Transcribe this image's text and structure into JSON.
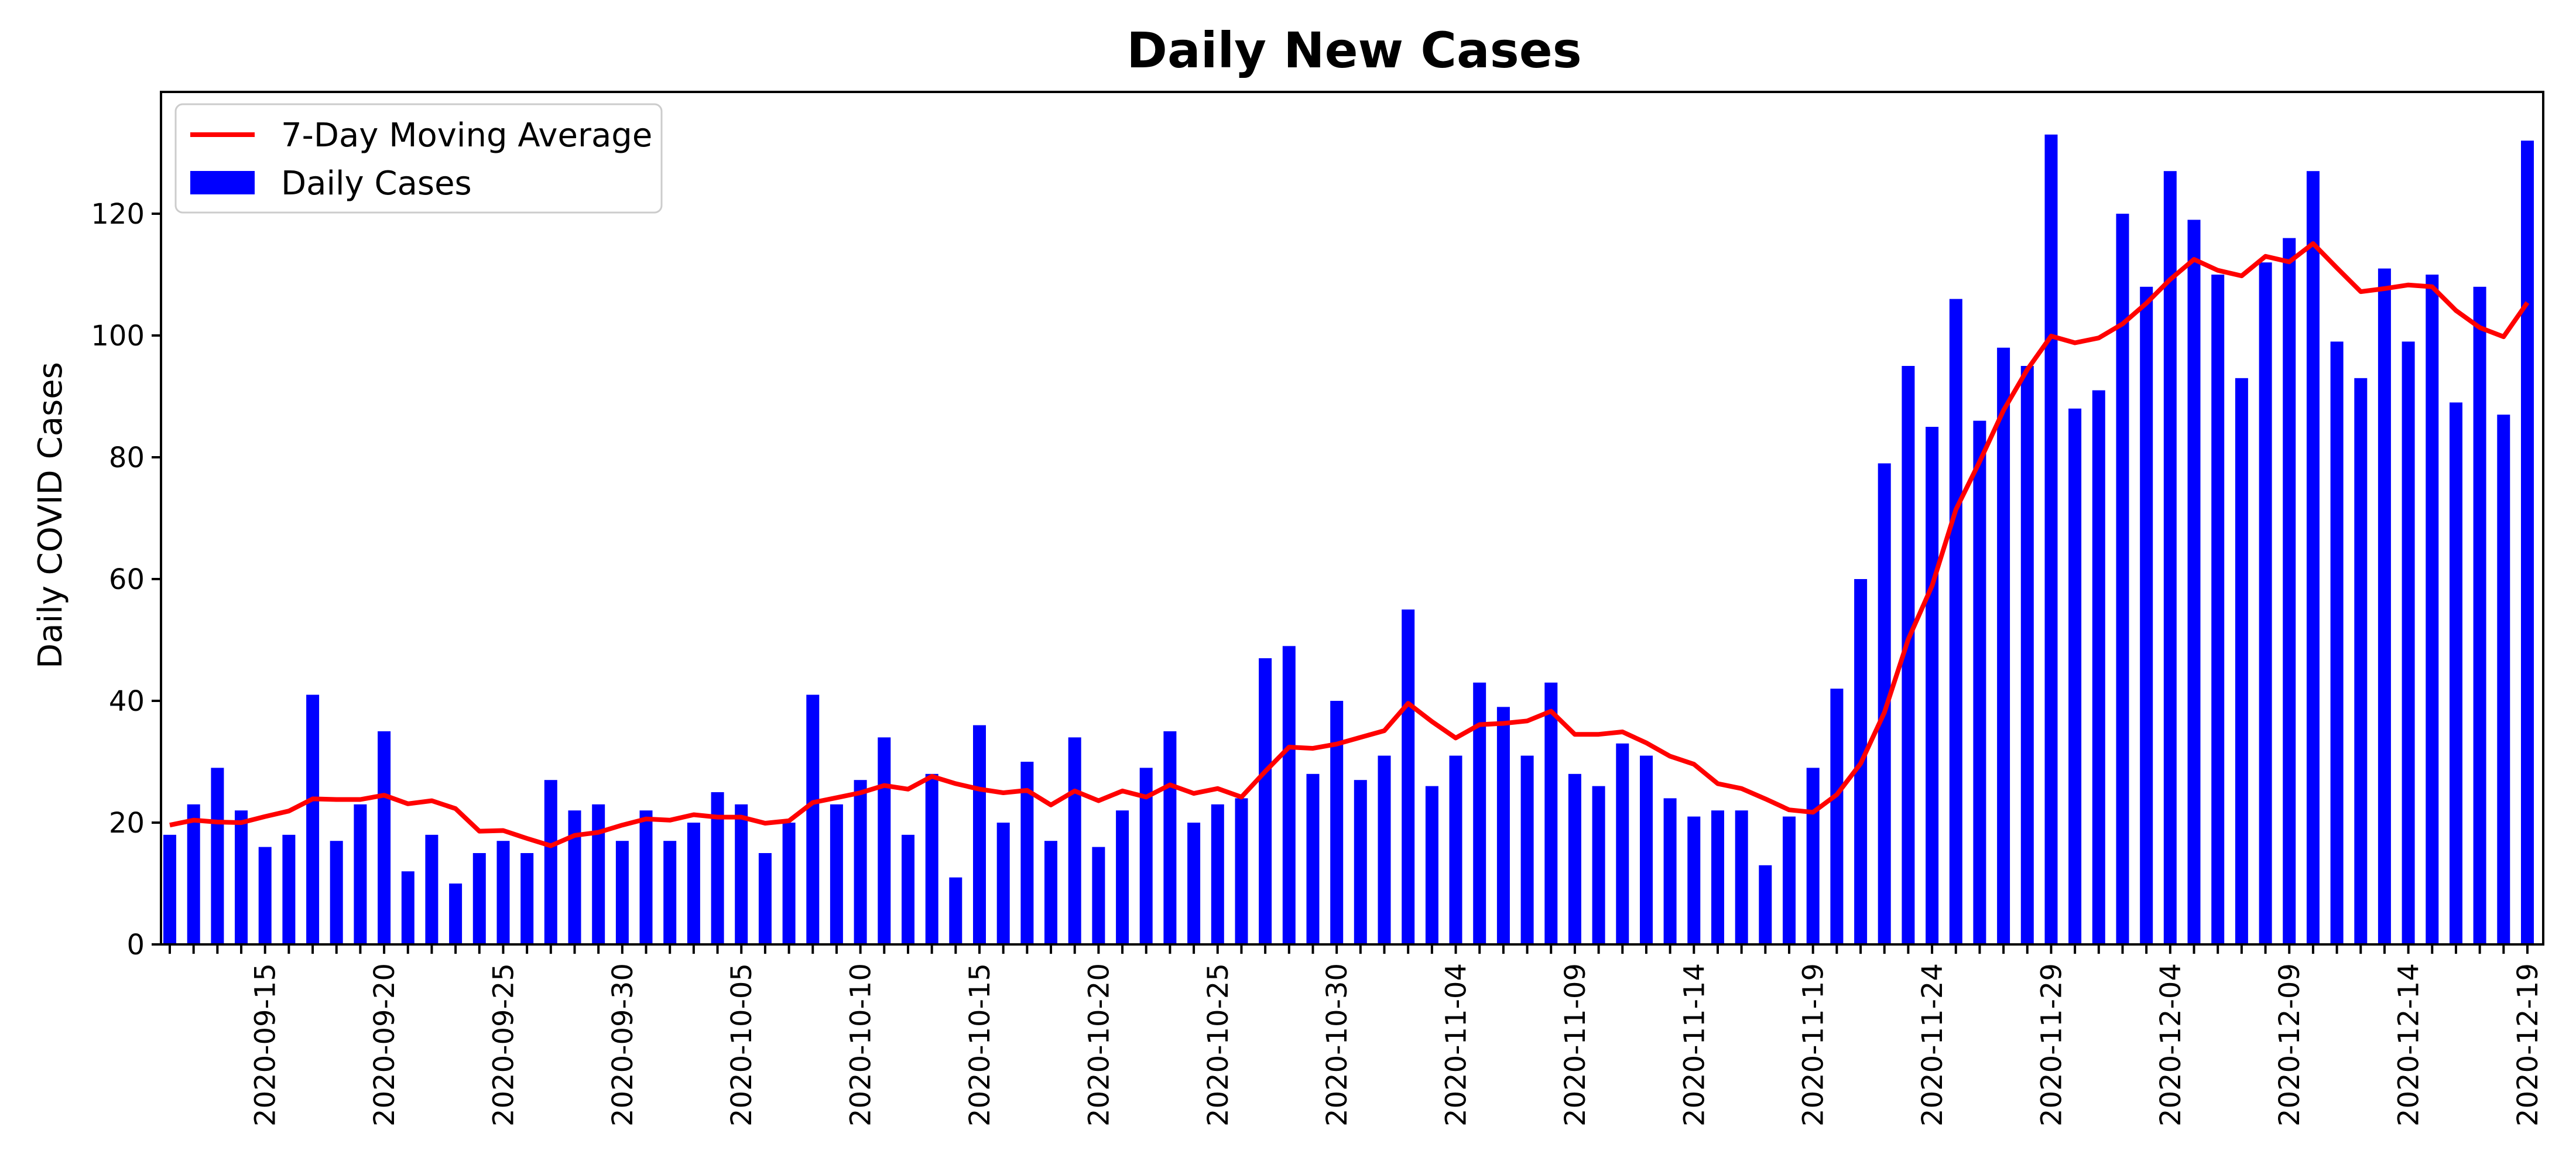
{
  "chart_data": {
    "type": "bar",
    "title": "Daily New Cases",
    "xlabel": "",
    "ylabel": "Daily COVID Cases",
    "ylim": [
      0,
      140
    ],
    "y_ticks": [
      0,
      20,
      40,
      60,
      80,
      100,
      120
    ],
    "grid": false,
    "legend_position": "top-left",
    "start_date": "2020-09-11",
    "x_tick_labels": [
      "2020-09-15",
      "2020-09-20",
      "2020-09-25",
      "2020-09-30",
      "2020-10-05",
      "2020-10-10",
      "2020-10-15",
      "2020-10-20",
      "2020-10-25",
      "2020-10-30",
      "2020-11-04",
      "2020-11-09",
      "2020-11-14",
      "2020-11-19",
      "2020-11-24",
      "2020-11-29",
      "2020-12-04",
      "2020-12-09",
      "2020-12-14",
      "2020-12-19"
    ],
    "colors": {
      "bars": "#0000ff",
      "line": "#ff0000"
    },
    "series": [
      {
        "name": "Daily Cases",
        "type": "bar",
        "values": [
          18,
          23,
          29,
          22,
          16,
          18,
          41,
          17,
          23,
          35,
          12,
          18,
          10,
          15,
          17,
          15,
          27,
          22,
          23,
          17,
          22,
          17,
          20,
          25,
          23,
          15,
          20,
          41,
          23,
          27,
          34,
          18,
          28,
          11,
          36,
          20,
          30,
          17,
          34,
          16,
          22,
          29,
          35,
          20,
          23,
          24,
          47,
          49,
          28,
          40,
          27,
          31,
          55,
          26,
          31,
          43,
          39,
          31,
          43,
          28,
          26,
          33,
          31,
          24,
          21,
          22,
          22,
          13,
          21,
          29,
          42,
          60,
          79,
          95,
          85,
          106,
          86,
          98,
          95,
          133,
          88,
          91,
          120,
          108,
          127,
          119,
          110,
          93,
          112,
          116,
          127,
          99,
          93,
          111,
          99,
          110,
          89,
          108,
          87,
          132
        ]
      },
      {
        "name": "7-Day Moving Average",
        "type": "line",
        "values": [
          19.6,
          20.4,
          20.1,
          20.0,
          21.0,
          21.9,
          23.9,
          23.8,
          23.8,
          24.5,
          23.1,
          23.6,
          22.3,
          18.6,
          18.7,
          17.4,
          16.2,
          17.9,
          18.4,
          19.6,
          20.6,
          20.4,
          21.3,
          20.9,
          20.9,
          19.9,
          20.3,
          23.3,
          24.1,
          24.9,
          26.1,
          25.5,
          27.6,
          26.4,
          25.5,
          24.9,
          25.3,
          22.9,
          25.2,
          23.6,
          25.2,
          24.2,
          26.2,
          24.8,
          25.6,
          24.2,
          28.4,
          32.4,
          32.2,
          32.9,
          34.0,
          35.1,
          39.6,
          36.6,
          33.9,
          36.1,
          36.3,
          36.7,
          38.3,
          34.5,
          34.5,
          34.9,
          33.1,
          30.9,
          29.6,
          26.4,
          25.6,
          23.9,
          22.1,
          21.7,
          24.6,
          29.7,
          38.1,
          50.1,
          58.9,
          71.4,
          79.3,
          87.7,
          94.4,
          99.9,
          98.8,
          99.6,
          101.9,
          105.3,
          109.2,
          112.5,
          110.7,
          109.8,
          113.0,
          112.1,
          115.1,
          111.1,
          107.2,
          107.7,
          108.3,
          108.0,
          104.1,
          101.3,
          99.8,
          105.4
        ]
      }
    ]
  }
}
